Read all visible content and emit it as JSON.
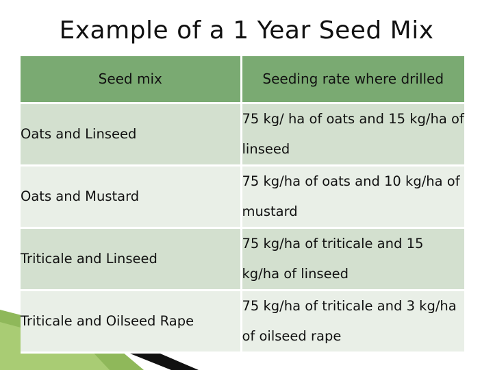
{
  "title": "Example of a 1 Year Seed Mix",
  "table": {
    "headers": [
      "Seed mix",
      "Seeding rate where drilled"
    ],
    "rows": [
      {
        "mix": "Oats and Linseed",
        "rate": "75 kg/ ha of oats and  15 kg/ha of linseed"
      },
      {
        "mix": "Oats and Mustard",
        "rate": "75 kg/ha of oats and 10 kg/ha of mustard"
      },
      {
        "mix": "Triticale and Linseed",
        "rate": "75 kg/ha of triticale and 15 kg/ha of linseed"
      },
      {
        "mix": "Triticale and Oilseed Rape",
        "rate": "75 kg/ha of triticale and 3 kg/ha of oilseed rape"
      }
    ]
  },
  "colors": {
    "header_bg": "#7aaa72",
    "row_dark": "#d3e0cf",
    "row_light": "#e9efe7",
    "accent_green": "#7fa64a",
    "accent_black": "#111111"
  }
}
